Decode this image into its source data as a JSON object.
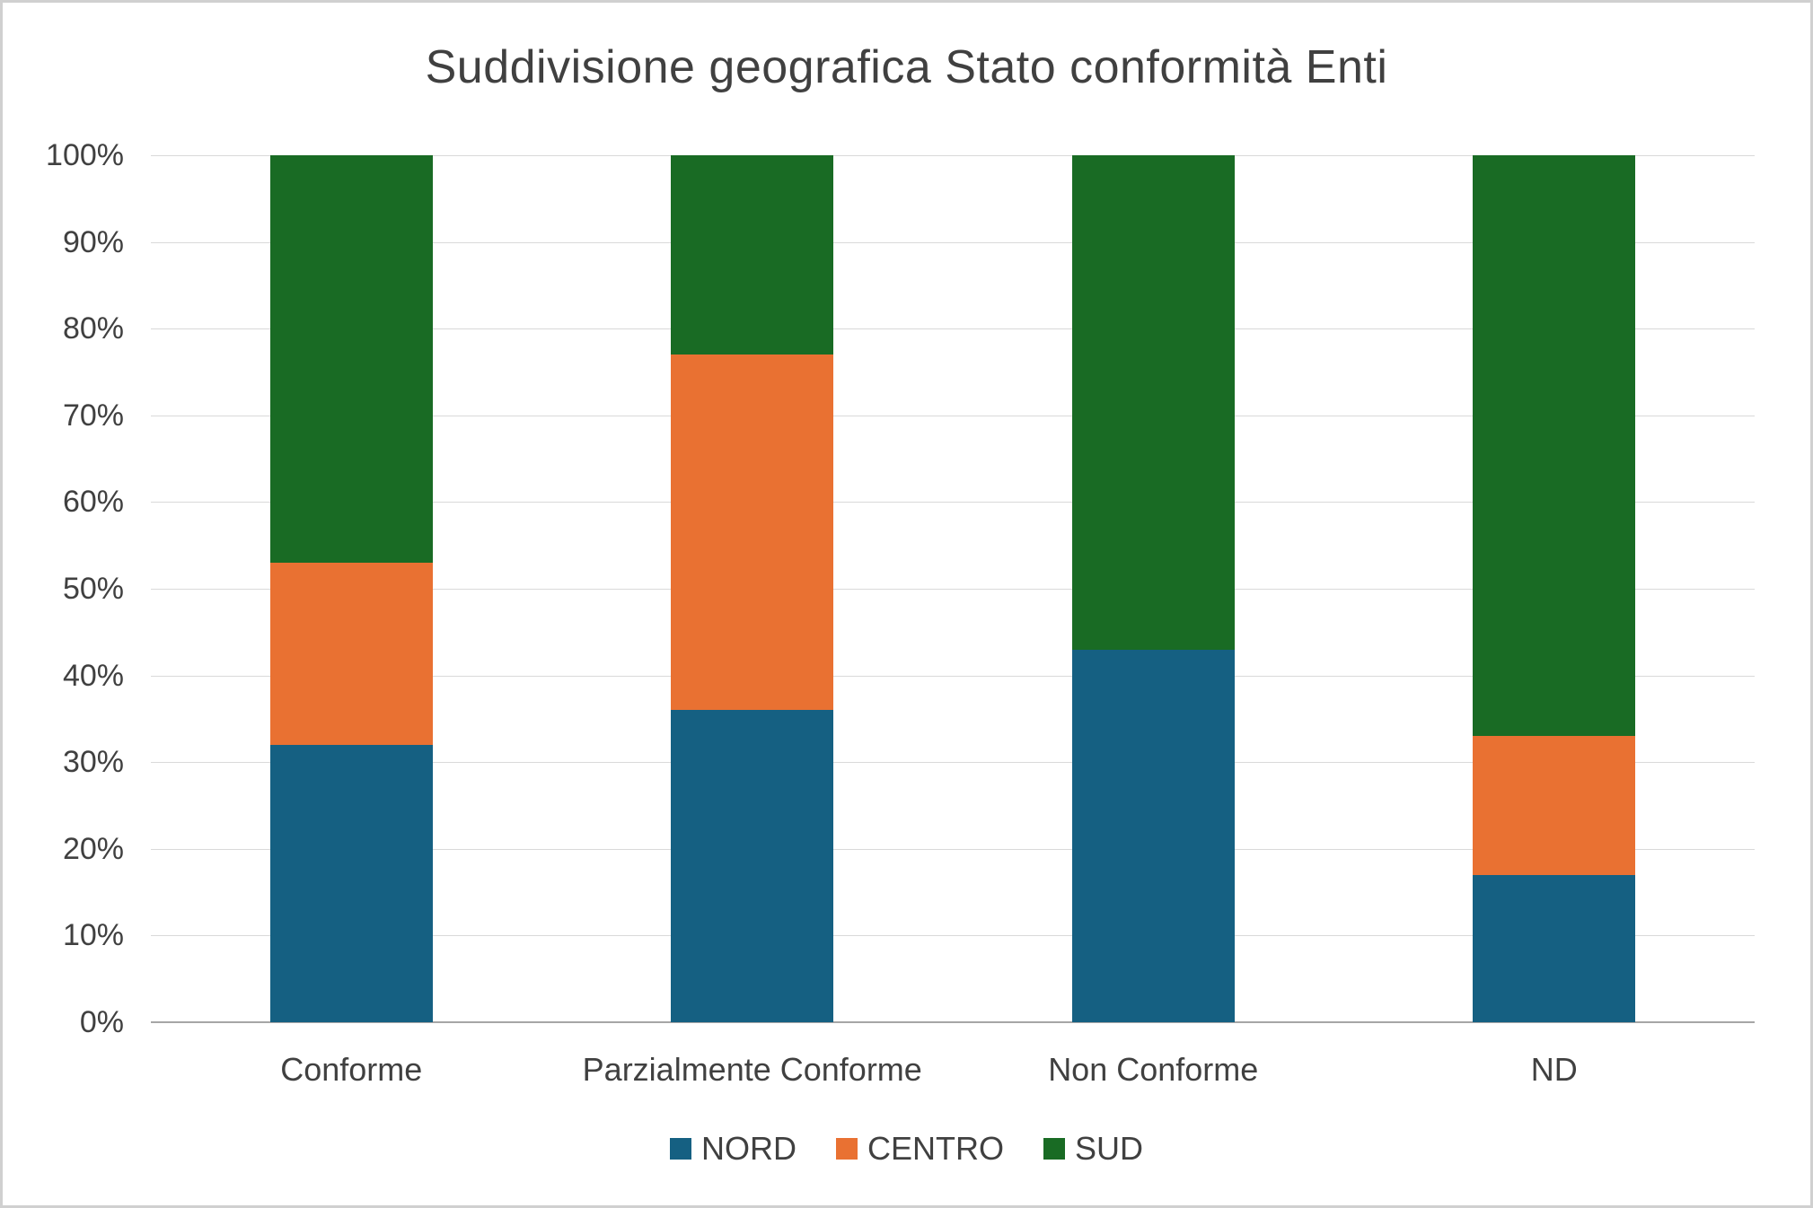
{
  "chart_data": {
    "type": "bar",
    "stacked": true,
    "percent_stacked": true,
    "title": "Suddivisione geografica Stato conformità Enti",
    "categories": [
      "Conforme",
      "Parzialmente Conforme",
      "Non Conforme",
      "ND"
    ],
    "series": [
      {
        "name": "NORD",
        "color": "#156082",
        "values": [
          32,
          36,
          43,
          17
        ]
      },
      {
        "name": "CENTRO",
        "color": "#E97132",
        "values": [
          21,
          41,
          0,
          16
        ]
      },
      {
        "name": "SUD",
        "color": "#196B24",
        "values": [
          47,
          23,
          57,
          67
        ]
      }
    ],
    "ylabel": "",
    "xlabel": "",
    "ylim": [
      0,
      100
    ],
    "y_ticks": [
      "0%",
      "10%",
      "20%",
      "30%",
      "40%",
      "50%",
      "60%",
      "70%",
      "80%",
      "90%",
      "100%"
    ],
    "grid": true,
    "legend_position": "bottom",
    "colors": {
      "grid": "#d9d9d9",
      "axis": "#a6a6a6",
      "text": "#404040",
      "background": "#ffffff"
    }
  }
}
